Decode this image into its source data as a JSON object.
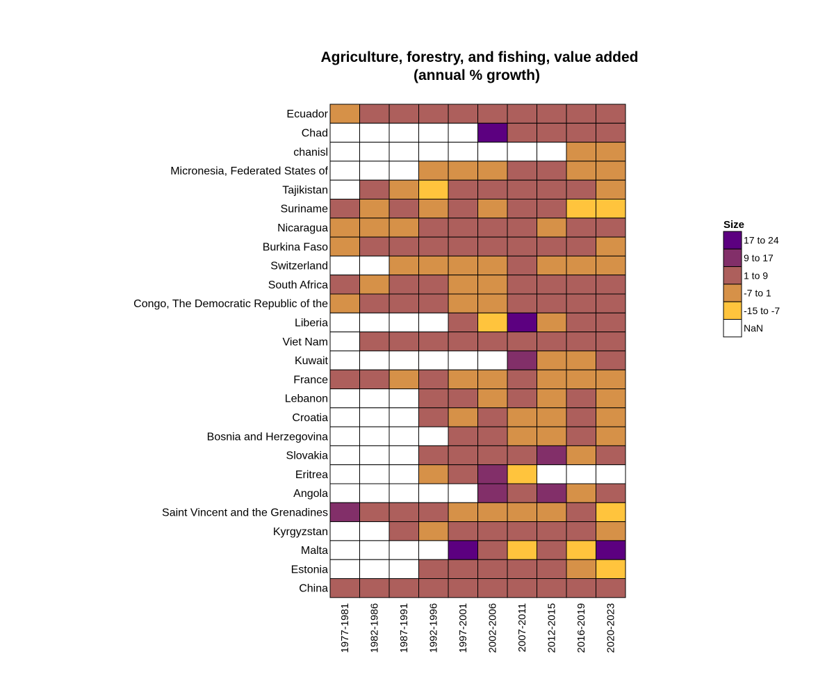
{
  "chart_data": {
    "type": "heatmap",
    "title_lines": [
      "Agriculture, forestry, and fishing, value added",
      "(annual % growth)"
    ],
    "xlabel": "",
    "ylabel": "",
    "x_categories": [
      "1977-1981",
      "1982-1986",
      "1987-1991",
      "1992-1996",
      "1997-2001",
      "2002-2006",
      "2007-2011",
      "2012-2015",
      "2016-2019",
      "2020-2023"
    ],
    "y_categories": [
      "Ecuador",
      "Chad",
      "chanisl",
      "Micronesia, Federated States of",
      "Tajikistan",
      "Suriname",
      "Nicaragua",
      "Burkina Faso",
      "Switzerland",
      "South Africa",
      "Congo, The Democratic Republic of the",
      "Liberia",
      "Viet Nam",
      "Kuwait",
      "France",
      "Lebanon",
      "Croatia",
      "Bosnia and Herzegovina",
      "Slovakia",
      "Eritrea",
      "Angola",
      "Saint Vincent and the Grenadines",
      "Kyrgyzstan",
      "Malta",
      "Estonia",
      "China"
    ],
    "legend": {
      "title": "Size",
      "position": "right",
      "bins": [
        {
          "key": "17to24",
          "label": "17 to 24",
          "color": "#5c0080"
        },
        {
          "key": "9to17",
          "label": "9 to 17",
          "color": "#822f69"
        },
        {
          "key": "1to9",
          "label": "1 to 9",
          "color": "#ad5f5c"
        },
        {
          "key": "m7to1",
          "label": "-7 to 1",
          "color": "#d69148"
        },
        {
          "key": "m15tom7",
          "label": "-15 to -7",
          "color": "#ffc43d"
        },
        {
          "key": "nan",
          "label": "NaN",
          "color": "#ffffff"
        }
      ]
    },
    "cells": [
      [
        "-7 to 1",
        "1 to 9",
        "1 to 9",
        "1 to 9",
        "1 to 9",
        "1 to 9",
        "1 to 9",
        "1 to 9",
        "1 to 9",
        "1 to 9"
      ],
      [
        "NaN",
        "NaN",
        "NaN",
        "NaN",
        "NaN",
        "17 to 24",
        "1 to 9",
        "1 to 9",
        "1 to 9",
        "1 to 9"
      ],
      [
        "NaN",
        "NaN",
        "NaN",
        "NaN",
        "NaN",
        "NaN",
        "NaN",
        "NaN",
        "-7 to 1",
        "-7 to 1"
      ],
      [
        "NaN",
        "NaN",
        "NaN",
        "-7 to 1",
        "-7 to 1",
        "-7 to 1",
        "1 to 9",
        "1 to 9",
        "-7 to 1",
        "-7 to 1"
      ],
      [
        "NaN",
        "1 to 9",
        "-7 to 1",
        "-15 to -7",
        "1 to 9",
        "1 to 9",
        "1 to 9",
        "1 to 9",
        "1 to 9",
        "-7 to 1"
      ],
      [
        "1 to 9",
        "-7 to 1",
        "1 to 9",
        "-7 to 1",
        "1 to 9",
        "-7 to 1",
        "1 to 9",
        "1 to 9",
        "-15 to -7",
        "-15 to -7"
      ],
      [
        "-7 to 1",
        "-7 to 1",
        "-7 to 1",
        "1 to 9",
        "1 to 9",
        "1 to 9",
        "1 to 9",
        "-7 to 1",
        "1 to 9",
        "1 to 9"
      ],
      [
        "-7 to 1",
        "1 to 9",
        "1 to 9",
        "1 to 9",
        "1 to 9",
        "1 to 9",
        "1 to 9",
        "1 to 9",
        "1 to 9",
        "-7 to 1"
      ],
      [
        "NaN",
        "NaN",
        "-7 to 1",
        "-7 to 1",
        "-7 to 1",
        "-7 to 1",
        "1 to 9",
        "-7 to 1",
        "-7 to 1",
        "-7 to 1"
      ],
      [
        "1 to 9",
        "-7 to 1",
        "1 to 9",
        "1 to 9",
        "-7 to 1",
        "-7 to 1",
        "1 to 9",
        "1 to 9",
        "1 to 9",
        "1 to 9"
      ],
      [
        "-7 to 1",
        "1 to 9",
        "1 to 9",
        "1 to 9",
        "-7 to 1",
        "-7 to 1",
        "1 to 9",
        "1 to 9",
        "1 to 9",
        "1 to 9"
      ],
      [
        "NaN",
        "NaN",
        "NaN",
        "NaN",
        "1 to 9",
        "-15 to -7",
        "17 to 24",
        "-7 to 1",
        "1 to 9",
        "1 to 9"
      ],
      [
        "NaN",
        "1 to 9",
        "1 to 9",
        "1 to 9",
        "1 to 9",
        "1 to 9",
        "1 to 9",
        "1 to 9",
        "1 to 9",
        "1 to 9"
      ],
      [
        "NaN",
        "NaN",
        "NaN",
        "NaN",
        "NaN",
        "NaN",
        "9 to 17",
        "-7 to 1",
        "-7 to 1",
        "1 to 9"
      ],
      [
        "1 to 9",
        "1 to 9",
        "-7 to 1",
        "1 to 9",
        "-7 to 1",
        "-7 to 1",
        "1 to 9",
        "-7 to 1",
        "-7 to 1",
        "-7 to 1"
      ],
      [
        "NaN",
        "NaN",
        "NaN",
        "1 to 9",
        "1 to 9",
        "-7 to 1",
        "1 to 9",
        "-7 to 1",
        "1 to 9",
        "-7 to 1"
      ],
      [
        "NaN",
        "NaN",
        "NaN",
        "1 to 9",
        "-7 to 1",
        "1 to 9",
        "-7 to 1",
        "-7 to 1",
        "1 to 9",
        "-7 to 1"
      ],
      [
        "NaN",
        "NaN",
        "NaN",
        "NaN",
        "1 to 9",
        "1 to 9",
        "-7 to 1",
        "-7 to 1",
        "1 to 9",
        "-7 to 1"
      ],
      [
        "NaN",
        "NaN",
        "NaN",
        "1 to 9",
        "1 to 9",
        "1 to 9",
        "1 to 9",
        "9 to 17",
        "-7 to 1",
        "1 to 9"
      ],
      [
        "NaN",
        "NaN",
        "NaN",
        "-7 to 1",
        "1 to 9",
        "9 to 17",
        "-15 to -7",
        "NaN",
        "NaN",
        "NaN"
      ],
      [
        "NaN",
        "NaN",
        "NaN",
        "NaN",
        "NaN",
        "9 to 17",
        "1 to 9",
        "9 to 17",
        "-7 to 1",
        "1 to 9"
      ],
      [
        "9 to 17",
        "1 to 9",
        "1 to 9",
        "1 to 9",
        "-7 to 1",
        "-7 to 1",
        "-7 to 1",
        "-7 to 1",
        "1 to 9",
        "-15 to -7"
      ],
      [
        "NaN",
        "NaN",
        "1 to 9",
        "-7 to 1",
        "1 to 9",
        "1 to 9",
        "1 to 9",
        "1 to 9",
        "1 to 9",
        "-7 to 1"
      ],
      [
        "NaN",
        "NaN",
        "NaN",
        "NaN",
        "17 to 24",
        "1 to 9",
        "-15 to -7",
        "1 to 9",
        "-15 to -7",
        "17 to 24"
      ],
      [
        "NaN",
        "NaN",
        "NaN",
        "1 to 9",
        "1 to 9",
        "1 to 9",
        "1 to 9",
        "1 to 9",
        "-7 to 1",
        "-15 to -7"
      ],
      [
        "1 to 9",
        "1 to 9",
        "1 to 9",
        "1 to 9",
        "1 to 9",
        "1 to 9",
        "1 to 9",
        "1 to 9",
        "1 to 9",
        "1 to 9"
      ]
    ]
  }
}
